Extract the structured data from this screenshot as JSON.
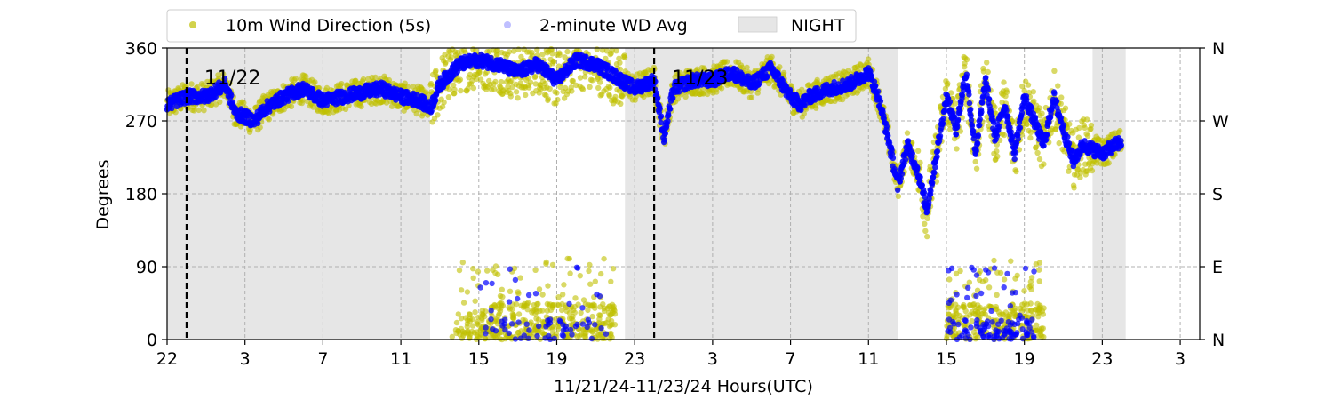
{
  "chart_data": {
    "type": "scatter",
    "title": "",
    "xlabel": "11/21/24-11/23/24  Hours(UTC)",
    "ylabel": "Degrees",
    "x_unit": "hours since 22:00 UTC 11/21/24",
    "xlim": [
      0,
      53
    ],
    "ylim": [
      0,
      360
    ],
    "x_ticks": [
      {
        "x": 0,
        "label": "22"
      },
      {
        "x": 4,
        "label": "3"
      },
      {
        "x": 8,
        "label": "7"
      },
      {
        "x": 12,
        "label": "11"
      },
      {
        "x": 16,
        "label": "15"
      },
      {
        "x": 20,
        "label": "19"
      },
      {
        "x": 24,
        "label": "23"
      },
      {
        "x": 28,
        "label": "3"
      },
      {
        "x": 32,
        "label": "7"
      },
      {
        "x": 36,
        "label": "11"
      },
      {
        "x": 40,
        "label": "15"
      },
      {
        "x": 44,
        "label": "19"
      },
      {
        "x": 48,
        "label": "23"
      },
      {
        "x": 52,
        "label": "3"
      }
    ],
    "y_ticks": [
      0,
      90,
      180,
      270,
      360
    ],
    "right_y_ticks": [
      {
        "y": 0,
        "label": "N"
      },
      {
        "y": 90,
        "label": "E"
      },
      {
        "y": 180,
        "label": "S"
      },
      {
        "y": 270,
        "label": "W"
      },
      {
        "y": 360,
        "label": "N"
      }
    ],
    "grid": true,
    "legend_position": "top",
    "legend": [
      "10m Wind Direction (5s)",
      "2-minute WD Avg",
      "NIGHT"
    ],
    "night_periods": [
      [
        0,
        13.5
      ],
      [
        23.5,
        37.5
      ],
      [
        47.5,
        49.2
      ]
    ],
    "day_markers": [
      {
        "x": 1,
        "label": "11/22"
      },
      {
        "x": 25,
        "label": "11/23"
      }
    ],
    "colors": {
      "wind_5s": "#bfbf00",
      "wd_avg": "#0000ff",
      "night": "#e6e6e6",
      "grid": "#b0b0b0"
    },
    "series": [
      {
        "name": "2-minute WD Avg",
        "x": [
          0,
          1,
          2,
          3,
          3.5,
          4,
          4.5,
          5,
          6,
          7,
          8,
          9,
          10,
          11,
          12,
          13,
          13.5,
          14,
          15,
          16,
          17,
          18,
          19,
          20,
          21,
          22,
          23,
          24,
          25,
          25.5,
          26,
          27,
          28,
          29,
          30,
          31,
          32,
          32.5,
          33,
          34,
          35,
          36,
          36.5,
          37,
          37.5,
          38,
          38.5,
          39,
          39.5,
          40,
          40.5,
          41,
          41.5,
          42,
          42.5,
          43,
          43.5,
          44,
          44.5,
          45,
          45.5,
          46,
          46.5,
          47,
          48,
          49
        ],
        "values": [
          290,
          300,
          300,
          315,
          280,
          275,
          270,
          285,
          300,
          310,
          295,
          300,
          305,
          310,
          300,
          295,
          285,
          315,
          340,
          345,
          340,
          330,
          340,
          320,
          345,
          340,
          325,
          310,
          320,
          250,
          310,
          320,
          320,
          330,
          315,
          335,
          300,
          290,
          300,
          310,
          315,
          330,
          300,
          250,
          190,
          240,
          210,
          160,
          230,
          300,
          260,
          330,
          230,
          320,
          250,
          290,
          230,
          300,
          270,
          240,
          300,
          260,
          220,
          240,
          230,
          245
        ]
      }
    ]
  }
}
